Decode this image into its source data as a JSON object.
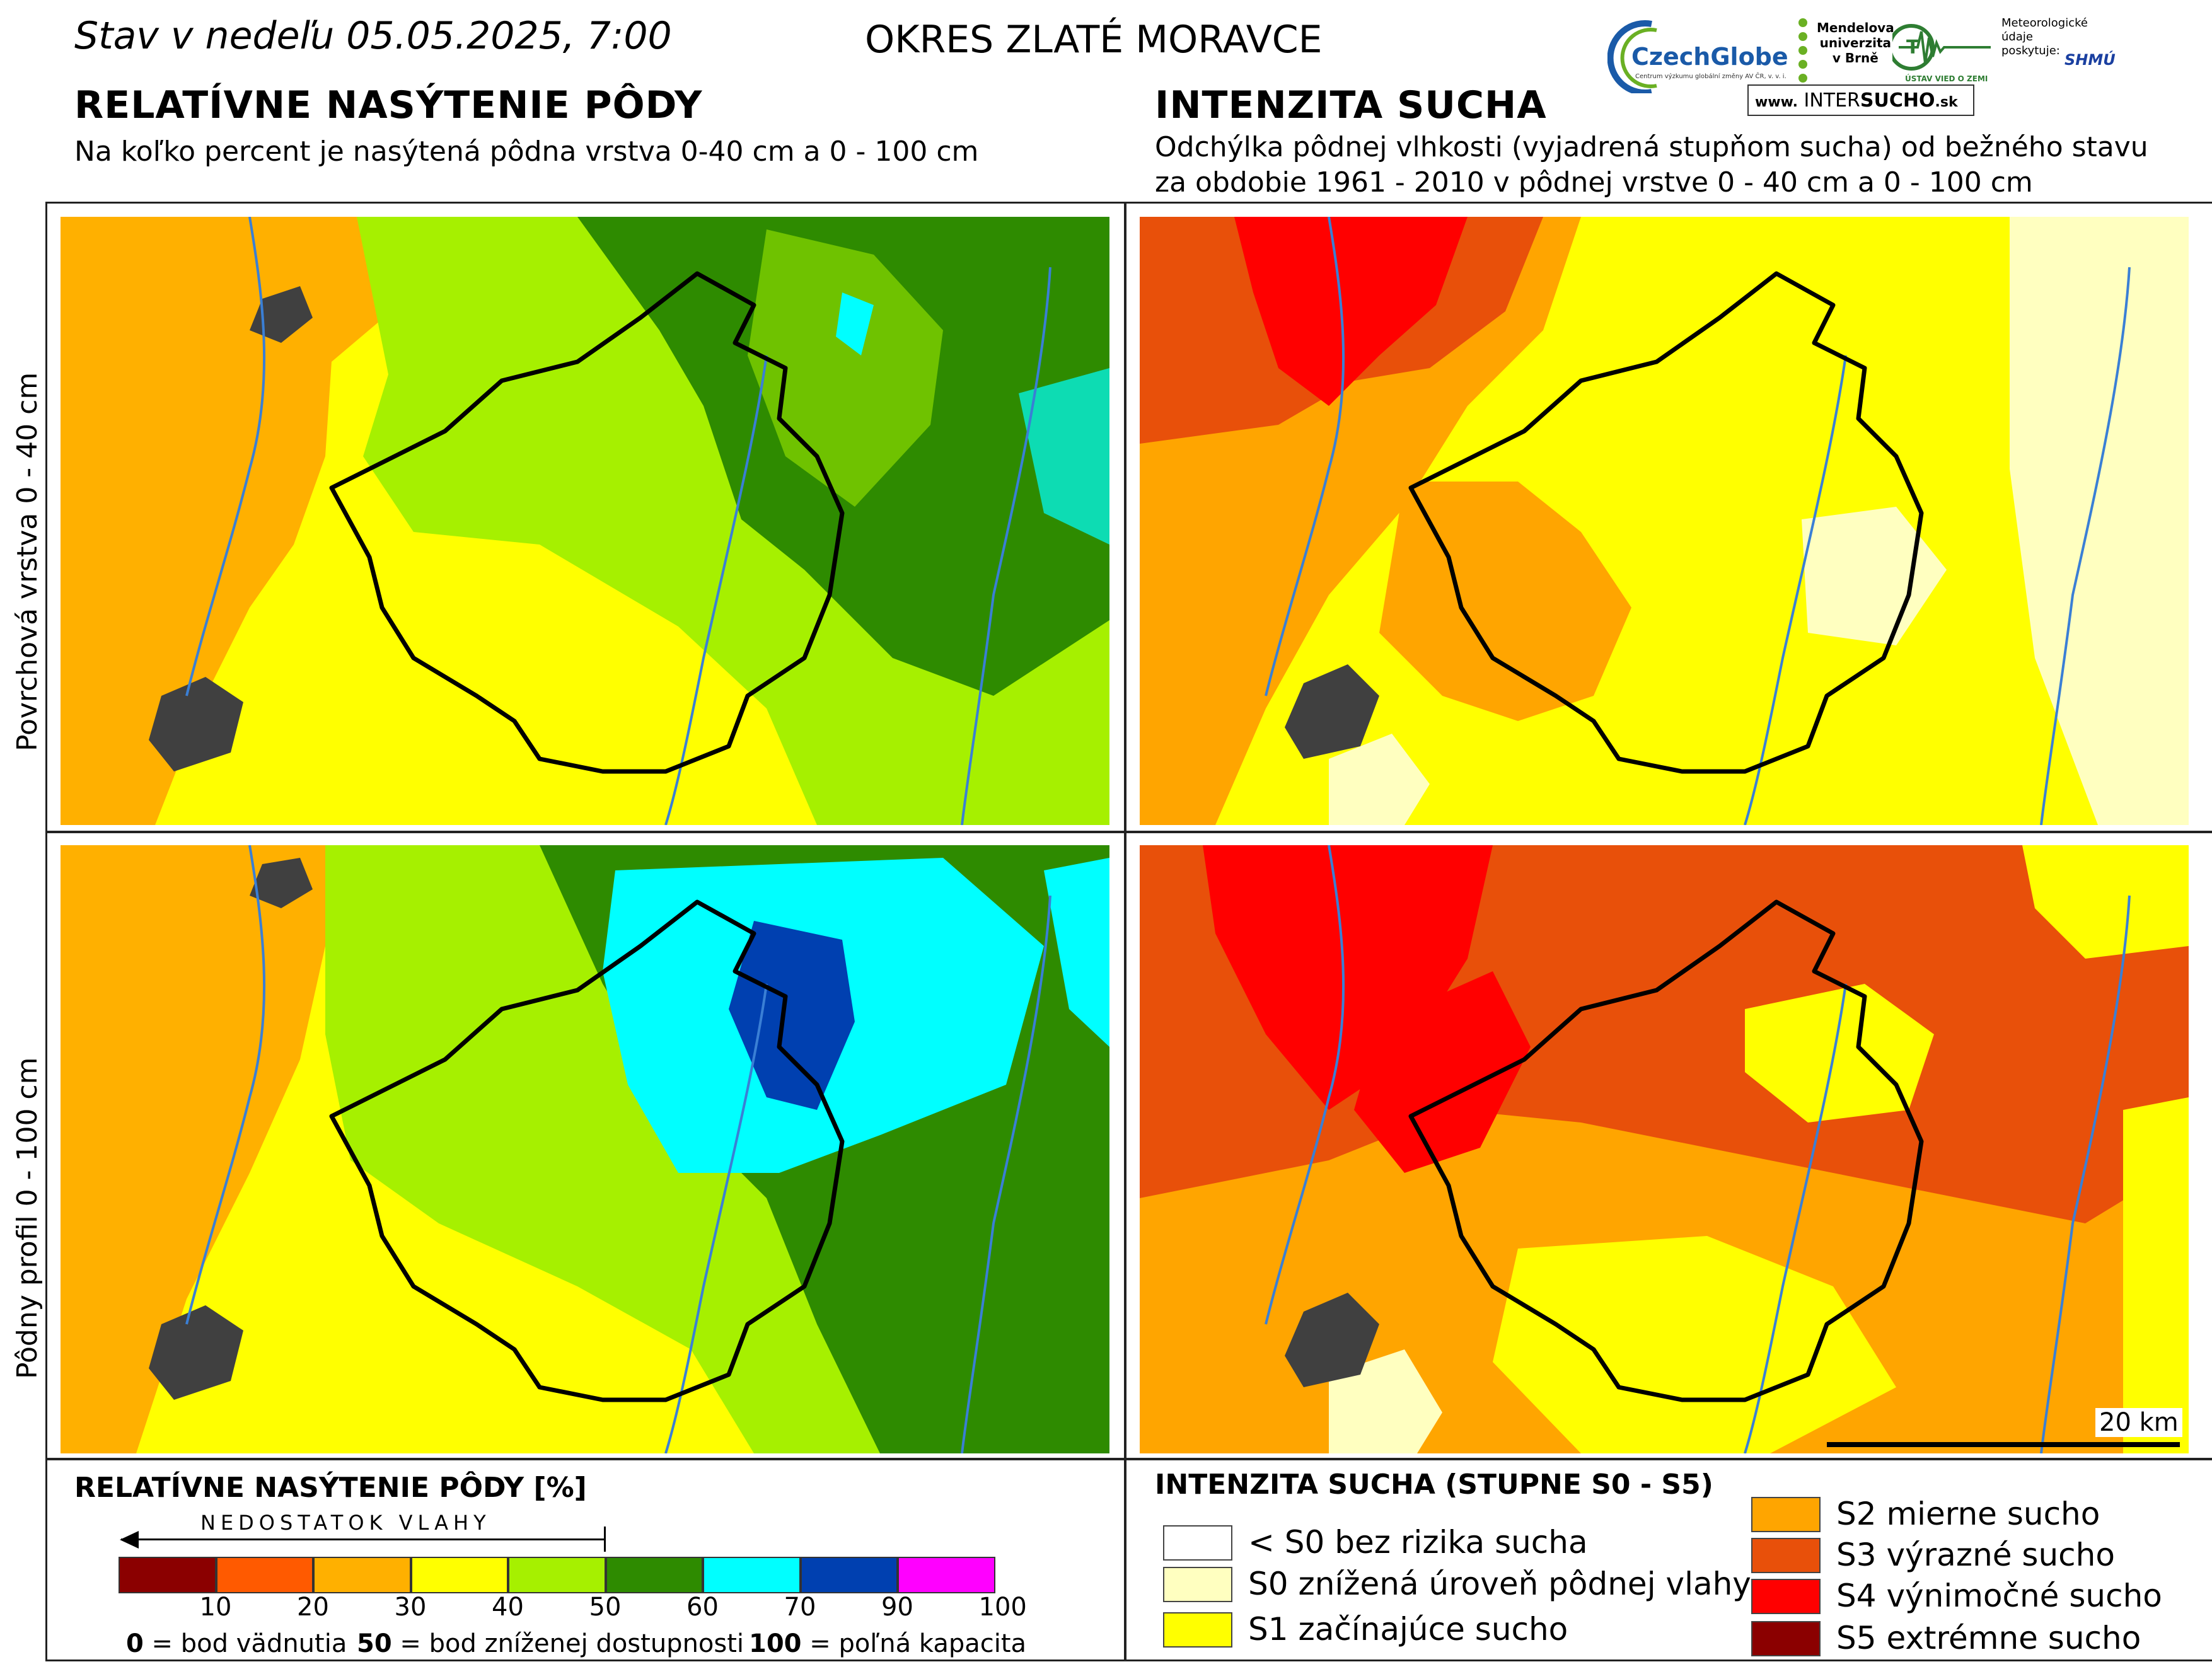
{
  "header": {
    "date": "Stav v nedeľu 05.05.2025, 7:00",
    "district": "OKRES  ZLATÉ MORAVCE",
    "left_title": "RELATÍVNE NASÝTENIE PÔDY",
    "left_sub": "Na koľko percent je nasýtená pôdna vrstva 0-40 cm a 0 - 100 cm",
    "right_title": "INTENZITA SUCHA",
    "right_sub1": "Odchýlka pôdnej vlhkosti (vyjadrená stupňom sucha) od bežného stavu",
    "right_sub2": "za obdobie 1961 - 2010 v pôdnej vrstve 0 - 40 cm a 0 - 100 cm"
  },
  "logos": {
    "czechglobe": "CzechGlobe",
    "czechglobe_sub": "Centrum výzkumu globální změny AV ČR, v. v. i.",
    "mendel1": "Mendelova",
    "mendel2": "univerzita",
    "mendel3": "v Brně",
    "uvz": "ÚSTAV VIED O ZEMI",
    "meteo1": "Meteorologické",
    "meteo2": "údaje",
    "meteo3": "poskytuje:",
    "shmu": "SHMÚ",
    "intersucho_prefix": "www.",
    "intersucho_a": "INTER",
    "intersucho_b": "SUCHO",
    "intersucho_c": ".sk"
  },
  "row_labels": {
    "top": "Povrchová vrstva 0 - 40 cm",
    "bottom": "Pôdny profil 0 - 100 cm"
  },
  "scalebar": "20 km",
  "saturation_legend": {
    "title": "RELATÍVNE NASÝTENIE PÔDY [%]",
    "arrow_label": "NEDOSTATOK VLAHY",
    "classes": [
      {
        "color": "#8b0000"
      },
      {
        "color": "#ff5a00"
      },
      {
        "color": "#ffb000"
      },
      {
        "color": "#ffff00"
      },
      {
        "color": "#a6f000"
      },
      {
        "color": "#2e8b00"
      },
      {
        "color": "#00ffff"
      },
      {
        "color": "#0040b0"
      },
      {
        "color": "#ff00ff"
      }
    ],
    "ticks": [
      "10",
      "20",
      "30",
      "40",
      "50",
      "60",
      "70",
      "90",
      "100"
    ],
    "note_a_num": "0",
    "note_a": " = bod vädnutia",
    "note_b_num": "50",
    "note_b": " = bod zníženej dostupnosti",
    "note_c_num": "100",
    "note_c": " = poľná kapacita"
  },
  "drought_legend": {
    "title": "INTENZITA SUCHA (STUPNE S0 - S5)",
    "items": [
      {
        "label": "< S0 bez rizika sucha",
        "color": "#ffffff"
      },
      {
        "label": "S0 znížená úroveň pôdnej vlahy",
        "color": "#ffffc0"
      },
      {
        "label": "S1 začínajúce sucho",
        "color": "#ffff00"
      },
      {
        "label": "S2 mierne sucho",
        "color": "#ffa500"
      },
      {
        "label": "S3 výrazné sucho",
        "color": "#e8500a"
      },
      {
        "label": "S4 výnimočné sucho",
        "color": "#ff0000"
      },
      {
        "label": "S5 extrémne sucho",
        "color": "#8b0000"
      }
    ]
  }
}
